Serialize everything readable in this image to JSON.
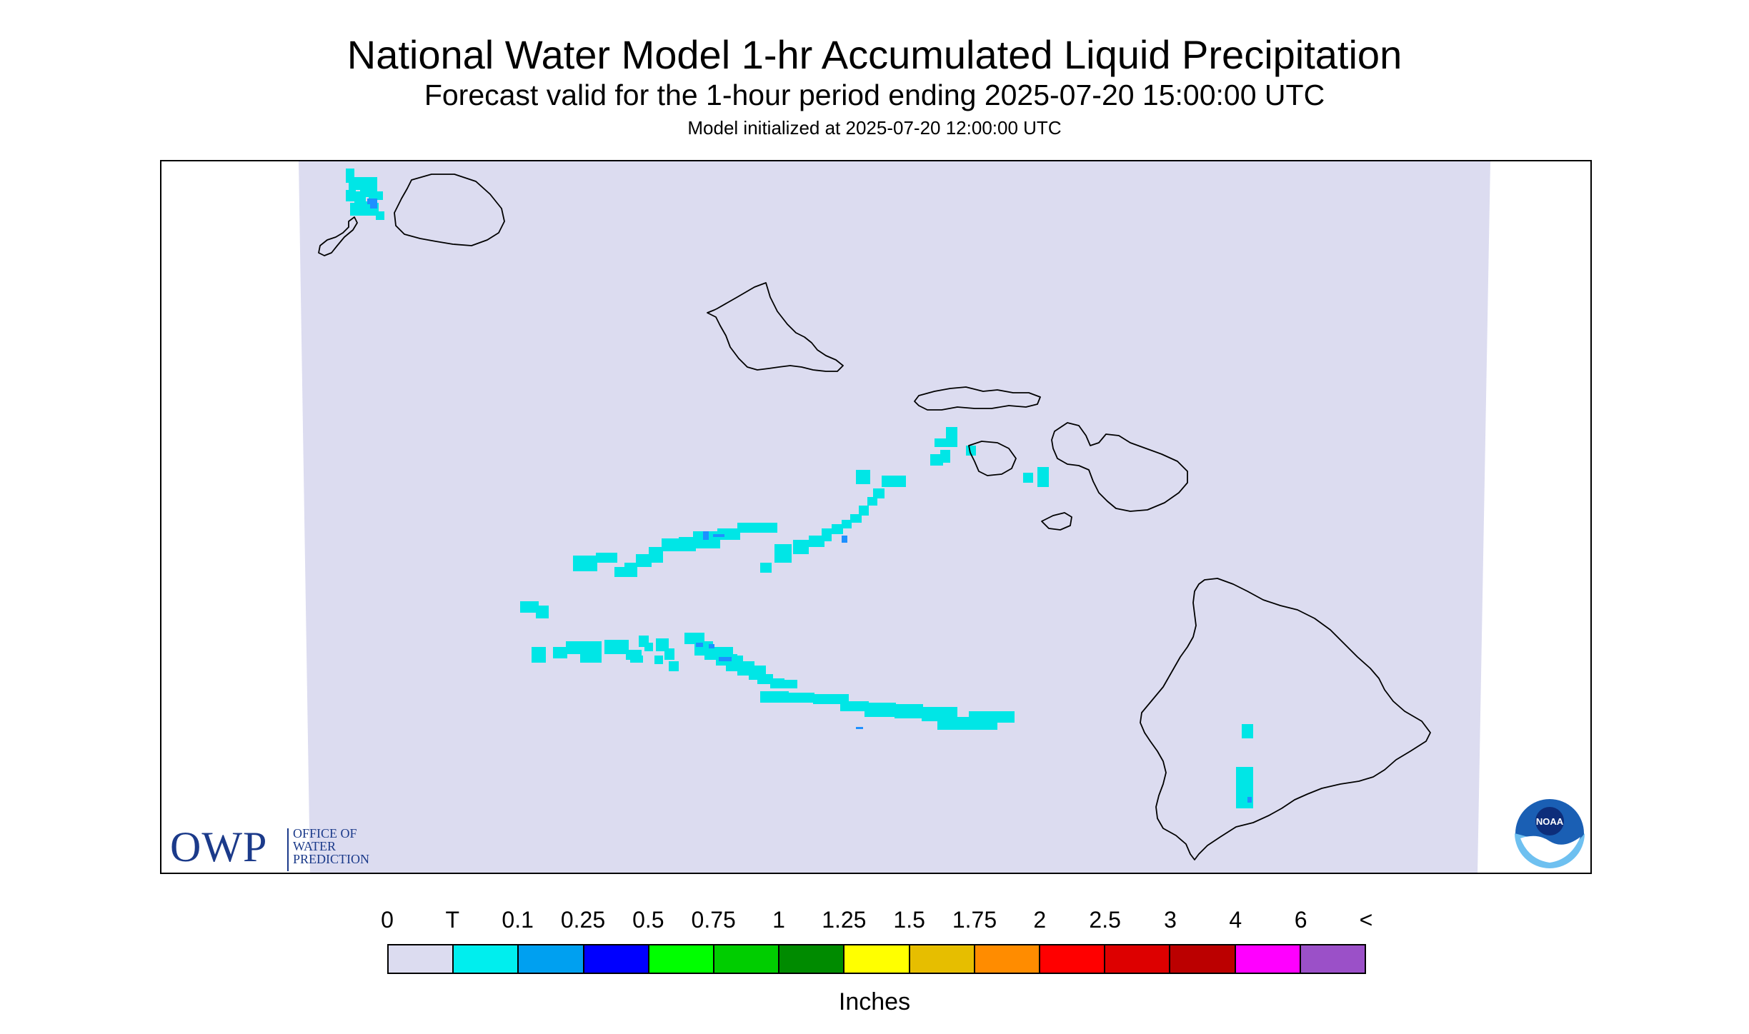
{
  "title": "National Water Model 1-hr Accumulated Liquid Precipitation",
  "subtitle": "Forecast valid for the 1-hour period ending 2025-07-20 15:00:00 UTC",
  "init_line": "Model initialized at 2025-07-20 12:00:00 UTC",
  "logos": {
    "owp": {
      "letters": "OWP",
      "name_lines": [
        "OFFICE OF",
        "WATER",
        "PREDICTION"
      ]
    },
    "noaa": {
      "text": "NOAA"
    }
  },
  "legend": {
    "unit": "Inches",
    "labels": [
      "0",
      "T",
      "0.1",
      "0.25",
      "0.5",
      "0.75",
      "1",
      "1.25",
      "1.5",
      "1.75",
      "2",
      "2.5",
      "3",
      "4",
      "6",
      "<"
    ],
    "colors": [
      "#dcdcf0",
      "#00eeee",
      "#00a0f0",
      "#0000ff",
      "#00ff00",
      "#00cd00",
      "#008b00",
      "#ffff00",
      "#e6be00",
      "#ff8c00",
      "#ff0000",
      "#dd0000",
      "#bb0000",
      "#ff00ff",
      "#9b50c8"
    ]
  },
  "map": {
    "background_color": "#dcdcf0",
    "outside_color": "#ffffff",
    "coastline_color": "#000000",
    "trace_color": "#00e6e6",
    "light_color": "#1e90ff",
    "islands": [
      "Niihau",
      "Kauai",
      "Oahu",
      "Molokai",
      "Lanai",
      "Maui",
      "Kahoolawe",
      "Hawaii"
    ]
  }
}
